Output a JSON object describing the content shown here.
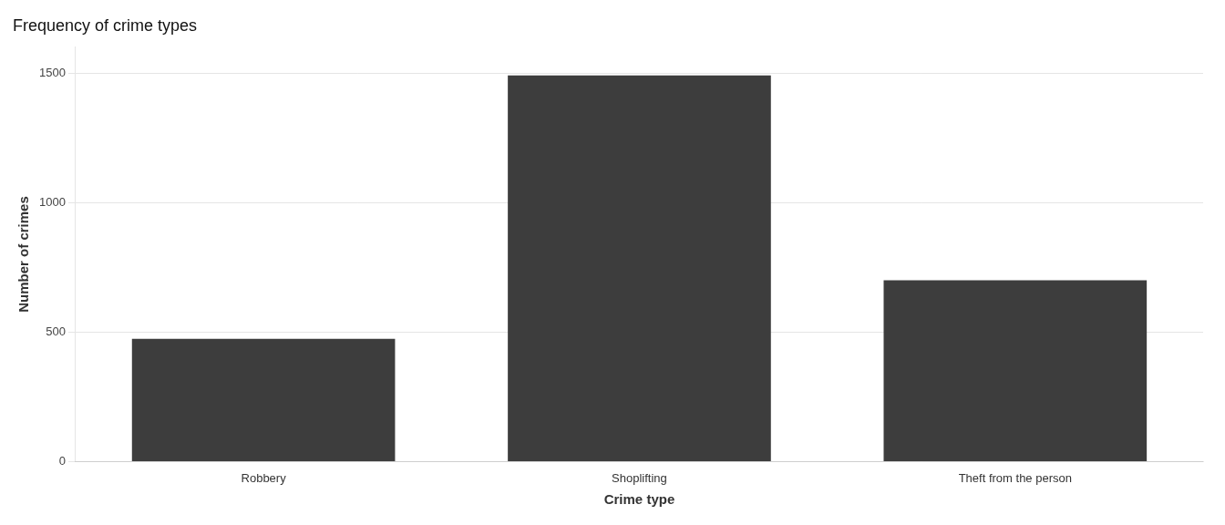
{
  "chart_data": {
    "type": "bar",
    "title": "Frequency of crime types",
    "xlabel": "Crime type",
    "ylabel": "Number of crimes",
    "categories": [
      "Robbery",
      "Shoplifting",
      "Theft from the person"
    ],
    "values": [
      474,
      1490,
      700
    ],
    "color": "#3d3d3d",
    "ylim": [
      0,
      1600
    ],
    "yticks": [
      0,
      500,
      1000,
      1500
    ],
    "grid": true
  }
}
